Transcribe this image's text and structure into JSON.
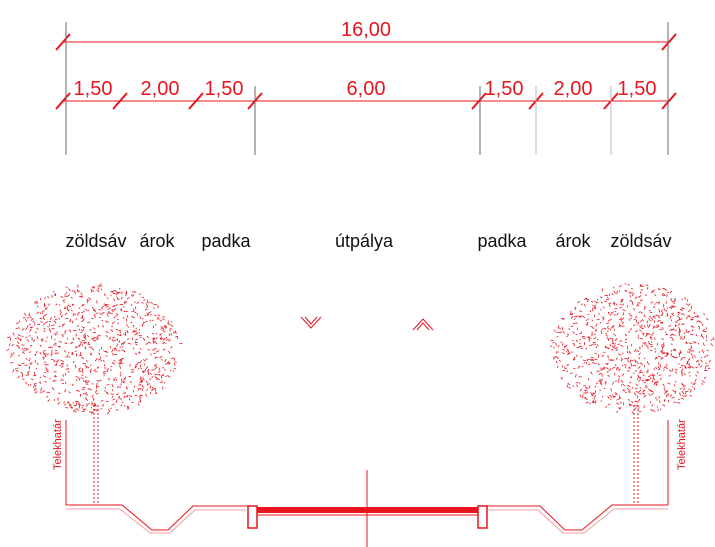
{
  "colors": {
    "red": "#e8141e",
    "black": "#111111",
    "grey": "#6a6a6a",
    "pink": "#f0a0a4"
  },
  "dimensions": {
    "total": "16,00",
    "segments": [
      "1,50",
      "2,00",
      "1,50",
      "6,00",
      "1,50",
      "2,00",
      "1,50"
    ]
  },
  "zones": [
    "zöldsáv",
    "árok",
    "padka",
    "útpálya",
    "padka",
    "árok",
    "zöldsáv"
  ],
  "boundary_labels": {
    "left": "Telekhatár",
    "right": "Telekhatár"
  },
  "icons": {
    "left_tree": "tree-icon",
    "right_tree": "tree-icon",
    "slope_left": "chevron-down-icon",
    "slope_right": "chevron-up-icon"
  }
}
